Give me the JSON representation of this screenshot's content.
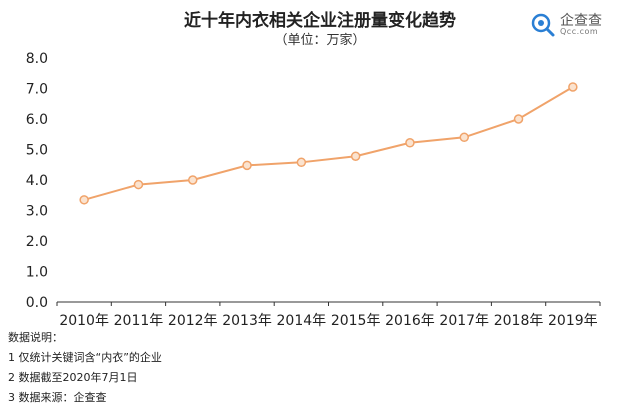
{
  "header": {
    "title": "近十年内衣相关企业注册量变化趋势",
    "subtitle": "（单位：万家）"
  },
  "logo": {
    "name": "企查查",
    "sub": "Qcc.com"
  },
  "colors": {
    "line": "#F0A36A",
    "marker_fill": "#FBE3CF",
    "axis_text": "#222222",
    "axis_line": "#333333"
  },
  "chart_data": {
    "type": "line",
    "categories": [
      "2010年",
      "2011年",
      "2012年",
      "2013年",
      "2014年",
      "2015年",
      "2016年",
      "2017年",
      "2018年",
      "2019年"
    ],
    "series": [
      {
        "values": [
          3.35,
          3.85,
          4.0,
          4.48,
          4.58,
          4.78,
          5.22,
          5.4,
          6.0,
          7.05
        ]
      }
    ],
    "yticks": [
      "0.0",
      "1.0",
      "2.0",
      "3.0",
      "4.0",
      "5.0",
      "6.0",
      "7.0",
      "8.0"
    ],
    "ylim": [
      0,
      8
    ],
    "grid": false,
    "legend": "none"
  },
  "notes": {
    "heading": "数据说明：",
    "lines": [
      "1 仅统计关键词含“内衣”的企业",
      "2 数据截至2020年7月1日",
      "3 数据来源：企查查"
    ]
  }
}
